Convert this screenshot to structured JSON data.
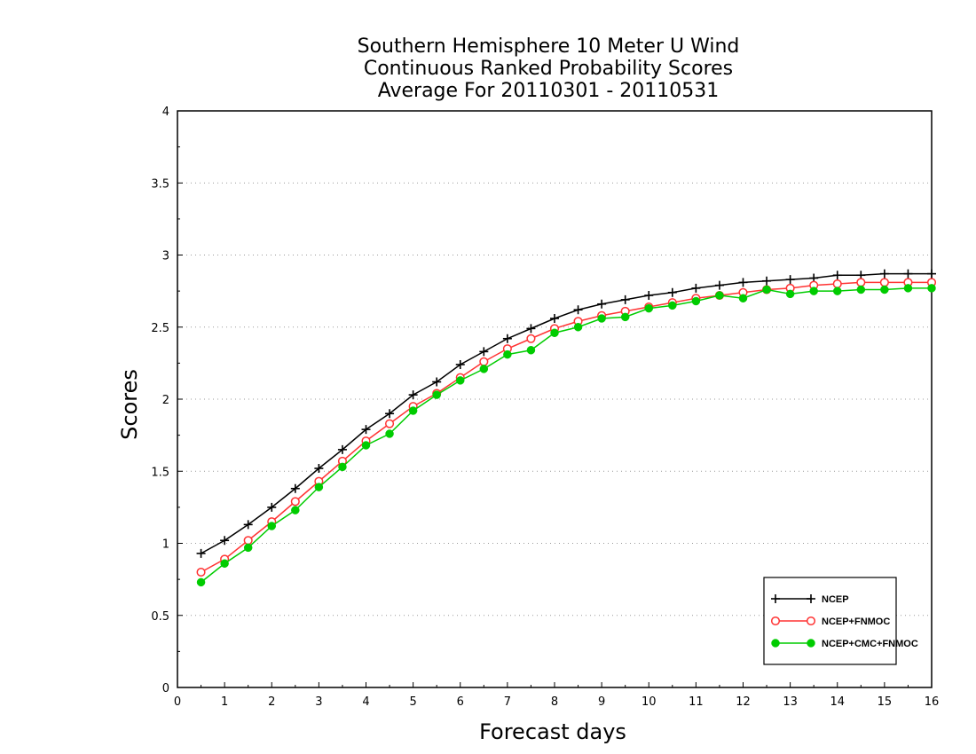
{
  "chart_data": {
    "type": "line",
    "title": [
      "Southern Hemisphere 10 Meter U Wind",
      "Continuous Ranked Probability Scores",
      "Average For 20110301 - 20110531"
    ],
    "xlabel": "Forecast days",
    "ylabel": "Scores",
    "xlim": [
      0,
      16
    ],
    "ylim": [
      0,
      4
    ],
    "xticks": [
      "0",
      "1",
      "2",
      "3",
      "4",
      "5",
      "6",
      "7",
      "8",
      "9",
      "10",
      "11",
      "12",
      "13",
      "14",
      "15",
      "16"
    ],
    "yticks": [
      "0",
      "0.5",
      "1",
      "1.5",
      "2",
      "2.5",
      "3",
      "3.5",
      "4"
    ],
    "grid": "horizontal-dotted",
    "legend_position": "bottom-right",
    "x": [
      0.5,
      1,
      1.5,
      2,
      2.5,
      3,
      3.5,
      4,
      4.5,
      5,
      5.5,
      6,
      6.5,
      7,
      7.5,
      8,
      8.5,
      9,
      9.5,
      10,
      10.5,
      11,
      11.5,
      12,
      12.5,
      13,
      13.5,
      14,
      14.5,
      15,
      15.5,
      16
    ],
    "series": [
      {
        "name": "NCEP",
        "color": "#000000",
        "marker": "plus",
        "values": [
          0.93,
          1.02,
          1.13,
          1.25,
          1.38,
          1.52,
          1.65,
          1.79,
          1.9,
          2.03,
          2.12,
          2.24,
          2.33,
          2.42,
          2.49,
          2.56,
          2.62,
          2.66,
          2.69,
          2.72,
          2.74,
          2.77,
          2.79,
          2.81,
          2.82,
          2.83,
          2.84,
          2.86,
          2.86,
          2.87,
          2.87,
          2.87
        ]
      },
      {
        "name": "NCEP+FNMOC",
        "color": "#ff3333",
        "marker": "open-circle",
        "values": [
          0.8,
          0.89,
          1.02,
          1.15,
          1.29,
          1.43,
          1.57,
          1.71,
          1.83,
          1.95,
          2.04,
          2.15,
          2.26,
          2.35,
          2.42,
          2.49,
          2.54,
          2.58,
          2.61,
          2.64,
          2.67,
          2.7,
          2.72,
          2.74,
          2.76,
          2.77,
          2.79,
          2.8,
          2.81,
          2.81,
          2.81,
          2.81
        ]
      },
      {
        "name": "NCEP+CMC+FNMOC",
        "color": "#00cc00",
        "marker": "filled-circle",
        "values": [
          0.73,
          0.86,
          0.97,
          1.12,
          1.23,
          1.39,
          1.53,
          1.68,
          1.76,
          1.92,
          2.03,
          2.13,
          2.21,
          2.31,
          2.34,
          2.46,
          2.5,
          2.56,
          2.57,
          2.63,
          2.65,
          2.68,
          2.72,
          2.7,
          2.76,
          2.73,
          2.75,
          2.75,
          2.76,
          2.76,
          2.77,
          2.77
        ]
      }
    ]
  }
}
